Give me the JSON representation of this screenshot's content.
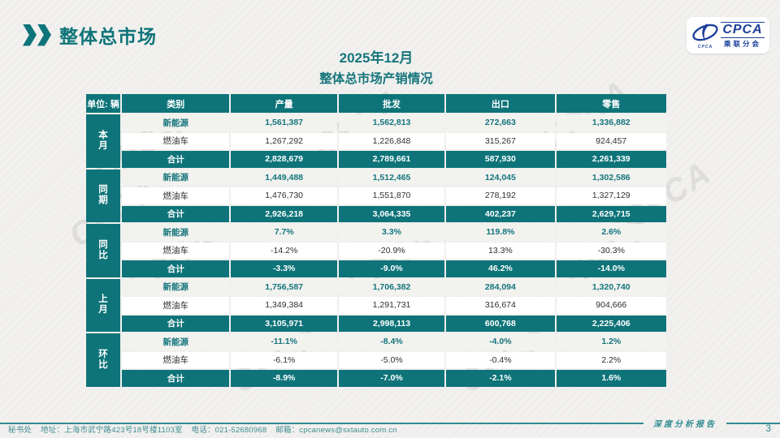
{
  "page": {
    "header_title": "整体总市场",
    "title_line1": "2025年12月",
    "title_line2": "整体总市场产销情况",
    "watermark_text": "CPCA",
    "logo": {
      "name_en": "CPCA",
      "name_cn": "乘联分会",
      "tiny_caption": "CPCA"
    },
    "footer": {
      "report_label": "深度分析报告",
      "office": "秘书处",
      "address": "地址：上海市武宁路423号18号楼1103室",
      "phone": "电话：021-52680968",
      "email": "邮箱：cpcanews@sxtauto.com.cn",
      "page_number": "3"
    }
  },
  "colors": {
    "teal": "#0e7479",
    "teal_text": "#15757c",
    "footer_teal": "#3f8d92",
    "logo_blue": "#1c3f9b",
    "nev_row_bg": "#f2f2ef",
    "page_bg": "#f0efed"
  },
  "table": {
    "unit_label": "单位: 辆",
    "columns": [
      "类别",
      "产量",
      "批发",
      "出口",
      "零售"
    ],
    "groups": [
      {
        "label": "本月",
        "rows": [
          {
            "style": "nev",
            "category": "新能源",
            "values": [
              "1,561,387",
              "1,562,813",
              "272,663",
              "1,336,882"
            ]
          },
          {
            "style": "ice",
            "category": "燃油车",
            "values": [
              "1,267,292",
              "1,226,848",
              "315,267",
              "924,457"
            ]
          },
          {
            "style": "total",
            "category": "合计",
            "values": [
              "2,828,679",
              "2,789,661",
              "587,930",
              "2,261,339"
            ]
          }
        ]
      },
      {
        "label": "同期",
        "rows": [
          {
            "style": "nev",
            "category": "新能源",
            "values": [
              "1,449,488",
              "1,512,465",
              "124,045",
              "1,302,586"
            ]
          },
          {
            "style": "ice",
            "category": "燃油车",
            "values": [
              "1,476,730",
              "1,551,870",
              "278,192",
              "1,327,129"
            ]
          },
          {
            "style": "total",
            "category": "合计",
            "values": [
              "2,926,218",
              "3,064,335",
              "402,237",
              "2,629,715"
            ]
          }
        ]
      },
      {
        "label": "同比",
        "rows": [
          {
            "style": "nev",
            "category": "新能源",
            "values": [
              "7.7%",
              "3.3%",
              "119.8%",
              "2.6%"
            ]
          },
          {
            "style": "ice",
            "category": "燃油车",
            "values": [
              "-14.2%",
              "-20.9%",
              "13.3%",
              "-30.3%"
            ]
          },
          {
            "style": "total",
            "category": "合计",
            "values": [
              "-3.3%",
              "-9.0%",
              "46.2%",
              "-14.0%"
            ]
          }
        ]
      },
      {
        "label": "上月",
        "rows": [
          {
            "style": "nev",
            "category": "新能源",
            "values": [
              "1,756,587",
              "1,706,382",
              "284,094",
              "1,320,740"
            ]
          },
          {
            "style": "ice",
            "category": "燃油车",
            "values": [
              "1,349,384",
              "1,291,731",
              "316,674",
              "904,666"
            ]
          },
          {
            "style": "total",
            "category": "合计",
            "values": [
              "3,105,971",
              "2,998,113",
              "600,768",
              "2,225,406"
            ]
          }
        ]
      },
      {
        "label": "环比",
        "rows": [
          {
            "style": "nev",
            "category": "新能源",
            "values": [
              "-11.1%",
              "-8.4%",
              "-4.0%",
              "1.2%"
            ]
          },
          {
            "style": "ice",
            "category": "燃油车",
            "values": [
              "-6.1%",
              "-5.0%",
              "-0.4%",
              "2.2%"
            ]
          },
          {
            "style": "total",
            "category": "合计",
            "values": [
              "-8.9%",
              "-7.0%",
              "-2.1%",
              "1.6%"
            ]
          }
        ]
      }
    ]
  }
}
